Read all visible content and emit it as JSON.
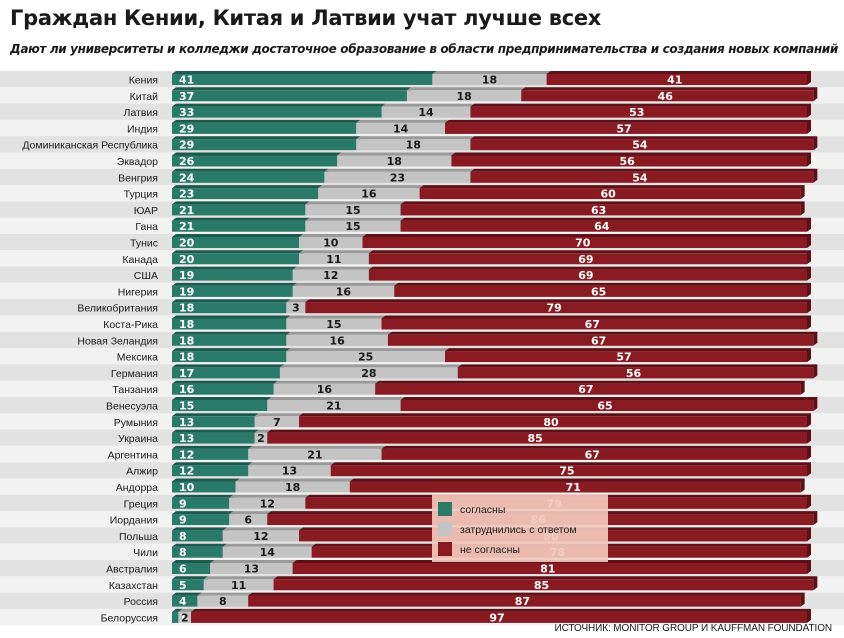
{
  "title": "Граждан Кении, Китая и Латвии учат лучше всех",
  "subtitle": "Дают ли университеты и колледжи достаточное образование в области предпринимательства и создания новых компаний",
  "source": "ИСТОЧНИК: MONITOR GROUP И KAUFFMAN FOUNDATION",
  "colors": {
    "agree": "#2a7a6a",
    "unsure": "#c4c4c4",
    "disagree": "#8a1a22",
    "bg_stripe": "#e2e2e2"
  },
  "chart_data": {
    "type": "bar",
    "orientation": "horizontal",
    "stacked": true,
    "categories": [
      "Кения",
      "Китай",
      "Латвия",
      "Индия",
      "Доминиканская Республика",
      "Эквадор",
      "Венгрия",
      "Турция",
      "ЮАР",
      "Гана",
      "Тунис",
      "Канада",
      "США",
      "Нигерия",
      "Великобритания",
      "Коста-Рика",
      "Новая Зеландия",
      "Мексика",
      "Германия",
      "Танзания",
      "Венесуэла",
      "Румыния",
      "Украина",
      "Аргентина",
      "Алжир",
      "Андорра",
      "Греция",
      "Иордания",
      "Польша",
      "Чили",
      "Австралия",
      "Казахстан",
      "Россия",
      "Белоруссия"
    ],
    "series": [
      {
        "name": "согласны",
        "values": [
          41,
          37,
          33,
          29,
          29,
          26,
          24,
          23,
          21,
          21,
          20,
          20,
          19,
          19,
          18,
          18,
          18,
          18,
          17,
          16,
          15,
          13,
          13,
          12,
          12,
          10,
          9,
          9,
          8,
          8,
          6,
          5,
          4,
          1
        ]
      },
      {
        "name": "затруднились с ответом",
        "values": [
          18,
          18,
          14,
          14,
          18,
          18,
          23,
          16,
          15,
          15,
          10,
          11,
          12,
          16,
          3,
          15,
          16,
          25,
          28,
          16,
          21,
          7,
          2,
          21,
          13,
          18,
          12,
          6,
          12,
          14,
          13,
          11,
          8,
          2
        ]
      },
      {
        "name": "не согласны",
        "values": [
          41,
          46,
          53,
          57,
          54,
          56,
          54,
          60,
          63,
          64,
          70,
          69,
          69,
          65,
          79,
          67,
          67,
          57,
          56,
          67,
          65,
          80,
          85,
          67,
          75,
          71,
          79,
          86,
          80,
          78,
          81,
          85,
          87,
          97
        ]
      }
    ],
    "legend_position": "lower-center"
  }
}
